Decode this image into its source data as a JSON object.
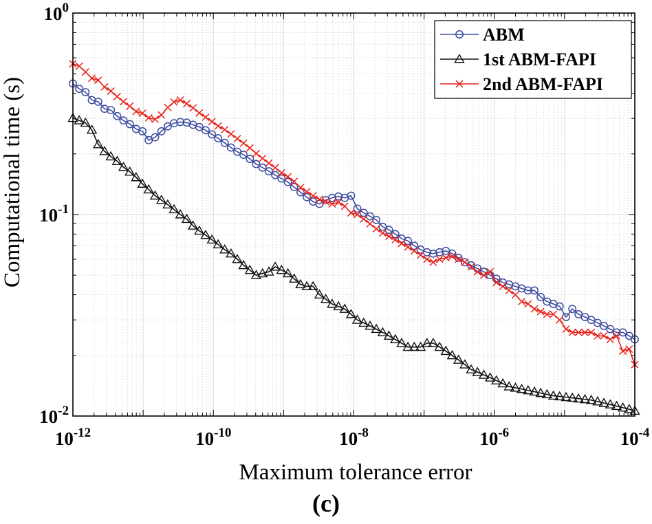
{
  "chart_data": {
    "type": "line",
    "scale": "log-log",
    "title": "",
    "caption": "(c)",
    "xlabel": "Maximum tolerance error",
    "ylabel": "Computational time (s)",
    "xlim": [
      1e-12,
      0.0001
    ],
    "ylim": [
      0.01,
      1
    ],
    "grid": true,
    "legend_position": "top-right",
    "x_ticks": [
      {
        "value": 1e-12,
        "base": "10",
        "exp": "-12"
      },
      {
        "value": 1e-10,
        "base": "10",
        "exp": "-10"
      },
      {
        "value": 1e-08,
        "base": "10",
        "exp": "-8"
      },
      {
        "value": 1e-06,
        "base": "10",
        "exp": "-6"
      },
      {
        "value": 0.0001,
        "base": "10",
        "exp": "-4"
      }
    ],
    "y_ticks": [
      {
        "value": 0.01,
        "base": "10",
        "exp": "-2"
      },
      {
        "value": 0.1,
        "base": "10",
        "exp": "-1"
      },
      {
        "value": 1,
        "base": "10",
        "exp": "0"
      }
    ],
    "series": [
      {
        "name": "ABM",
        "color": "#3b4ba0",
        "marker": "circle",
        "x": [
          1e-12,
          1.23e-12,
          1.51e-12,
          1.86e-12,
          2.29e-12,
          2.82e-12,
          3.47e-12,
          4.27e-12,
          5.25e-12,
          6.46e-12,
          7.94e-12,
          9.77e-12,
          1.2e-11,
          1.48e-11,
          1.82e-11,
          2.24e-11,
          2.75e-11,
          3.39e-11,
          4.17e-11,
          5.13e-11,
          6.31e-11,
          7.76e-11,
          9.55e-11,
          1.17e-10,
          1.45e-10,
          1.78e-10,
          2.19e-10,
          2.69e-10,
          3.31e-10,
          4.07e-10,
          5.01e-10,
          6.17e-10,
          7.59e-10,
          9.33e-10,
          1.15e-09,
          1.41e-09,
          1.74e-09,
          2.14e-09,
          2.63e-09,
          3.24e-09,
          3.98e-09,
          4.9e-09,
          6.03e-09,
          7.41e-09,
          9.12e-09,
          1.12e-08,
          1.38e-08,
          1.7e-08,
          2.09e-08,
          2.57e-08,
          3.16e-08,
          3.89e-08,
          4.79e-08,
          5.89e-08,
          7.24e-08,
          8.91e-08,
          1.1e-07,
          1.35e-07,
          1.66e-07,
          2.04e-07,
          2.51e-07,
          3.09e-07,
          3.8e-07,
          4.68e-07,
          5.75e-07,
          7.08e-07,
          8.71e-07,
          1.07e-06,
          1.32e-06,
          1.62e-06,
          2e-06,
          2.45e-06,
          3.02e-06,
          3.72e-06,
          4.57e-06,
          5.62e-06,
          6.92e-06,
          8.51e-06,
          1.05e-05,
          1.29e-05,
          1.58e-05,
          1.95e-05,
          2.4e-05,
          2.95e-05,
          3.63e-05,
          4.47e-05,
          5.5e-05,
          6.76e-05,
          8.32e-05,
          0.0001
        ],
        "y": [
          0.447,
          0.421,
          0.405,
          0.37,
          0.363,
          0.335,
          0.33,
          0.308,
          0.293,
          0.281,
          0.266,
          0.259,
          0.234,
          0.242,
          0.259,
          0.274,
          0.284,
          0.288,
          0.286,
          0.279,
          0.272,
          0.262,
          0.25,
          0.239,
          0.227,
          0.215,
          0.205,
          0.198,
          0.189,
          0.178,
          0.171,
          0.164,
          0.157,
          0.151,
          0.145,
          0.137,
          0.129,
          0.122,
          0.116,
          0.113,
          0.118,
          0.121,
          0.123,
          0.121,
          0.124,
          0.107,
          0.102,
          0.098,
          0.094,
          0.087,
          0.084,
          0.08,
          0.076,
          0.074,
          0.07,
          0.067,
          0.065,
          0.064,
          0.065,
          0.066,
          0.064,
          0.061,
          0.058,
          0.056,
          0.054,
          0.052,
          0.05,
          0.048,
          0.046,
          0.045,
          0.044,
          0.043,
          0.042,
          0.042,
          0.039,
          0.037,
          0.036,
          0.035,
          0.031,
          0.034,
          0.032,
          0.031,
          0.03,
          0.029,
          0.028,
          0.027,
          0.026,
          0.026,
          0.025,
          0.024
        ]
      },
      {
        "name": "1st ABM-FAPI",
        "color": "#111111",
        "marker": "triangle",
        "x": [
          1e-12,
          1.23e-12,
          1.51e-12,
          1.86e-12,
          2.29e-12,
          2.82e-12,
          3.47e-12,
          4.27e-12,
          5.25e-12,
          6.46e-12,
          7.94e-12,
          9.77e-12,
          1.2e-11,
          1.48e-11,
          1.82e-11,
          2.24e-11,
          2.75e-11,
          3.39e-11,
          4.17e-11,
          5.13e-11,
          6.31e-11,
          7.76e-11,
          9.55e-11,
          1.17e-10,
          1.45e-10,
          1.78e-10,
          2.19e-10,
          2.69e-10,
          3.31e-10,
          4.07e-10,
          5.01e-10,
          6.17e-10,
          7.59e-10,
          9.33e-10,
          1.15e-09,
          1.41e-09,
          1.74e-09,
          2.14e-09,
          2.63e-09,
          3.24e-09,
          3.98e-09,
          4.9e-09,
          6.03e-09,
          7.41e-09,
          9.12e-09,
          1.12e-08,
          1.38e-08,
          1.7e-08,
          2.09e-08,
          2.57e-08,
          3.16e-08,
          3.89e-08,
          4.79e-08,
          5.89e-08,
          7.24e-08,
          8.91e-08,
          1.1e-07,
          1.35e-07,
          1.66e-07,
          2.04e-07,
          2.51e-07,
          3.09e-07,
          3.8e-07,
          4.68e-07,
          5.75e-07,
          7.08e-07,
          8.71e-07,
          1.07e-06,
          1.32e-06,
          1.62e-06,
          2e-06,
          2.45e-06,
          3.02e-06,
          3.72e-06,
          4.57e-06,
          5.62e-06,
          6.92e-06,
          8.51e-06,
          1.05e-05,
          1.29e-05,
          1.58e-05,
          1.95e-05,
          2.4e-05,
          2.95e-05,
          3.63e-05,
          4.47e-05,
          5.5e-05,
          6.76e-05,
          8.32e-05,
          0.0001
        ],
        "y": [
          0.301,
          0.293,
          0.285,
          0.263,
          0.223,
          0.206,
          0.194,
          0.184,
          0.172,
          0.163,
          0.153,
          0.142,
          0.133,
          0.124,
          0.118,
          0.112,
          0.106,
          0.1,
          0.095,
          0.088,
          0.083,
          0.079,
          0.075,
          0.071,
          0.067,
          0.064,
          0.06,
          0.056,
          0.053,
          0.05,
          0.051,
          0.052,
          0.055,
          0.053,
          0.051,
          0.048,
          0.045,
          0.044,
          0.044,
          0.04,
          0.038,
          0.036,
          0.035,
          0.034,
          0.032,
          0.03,
          0.029,
          0.028,
          0.027,
          0.026,
          0.025,
          0.024,
          0.023,
          0.022,
          0.022,
          0.022,
          0.023,
          0.023,
          0.022,
          0.021,
          0.02,
          0.019,
          0.018,
          0.017,
          0.0165,
          0.016,
          0.0155,
          0.015,
          0.0145,
          0.014,
          0.0138,
          0.0136,
          0.0134,
          0.0132,
          0.013,
          0.0128,
          0.0126,
          0.0125,
          0.0124,
          0.0123,
          0.0122,
          0.0121,
          0.012,
          0.0118,
          0.0116,
          0.0114,
          0.0112,
          0.011,
          0.0108,
          0.0106
        ]
      },
      {
        "name": "2nd ABM-FAPI",
        "color": "#e8231b",
        "marker": "cross",
        "x": [
          1e-12,
          1.23e-12,
          1.51e-12,
          1.86e-12,
          2.29e-12,
          2.82e-12,
          3.47e-12,
          4.27e-12,
          5.25e-12,
          6.46e-12,
          7.94e-12,
          9.77e-12,
          1.2e-11,
          1.48e-11,
          1.82e-11,
          2.24e-11,
          2.75e-11,
          3.39e-11,
          4.17e-11,
          5.13e-11,
          6.31e-11,
          7.76e-11,
          9.55e-11,
          1.17e-10,
          1.45e-10,
          1.78e-10,
          2.19e-10,
          2.69e-10,
          3.31e-10,
          4.07e-10,
          5.01e-10,
          6.17e-10,
          7.59e-10,
          9.33e-10,
          1.15e-09,
          1.41e-09,
          1.74e-09,
          2.14e-09,
          2.63e-09,
          3.24e-09,
          3.98e-09,
          4.9e-09,
          6.03e-09,
          7.41e-09,
          9.12e-09,
          1.12e-08,
          1.38e-08,
          1.7e-08,
          2.09e-08,
          2.57e-08,
          3.16e-08,
          3.89e-08,
          4.79e-08,
          5.89e-08,
          7.24e-08,
          8.91e-08,
          1.1e-07,
          1.35e-07,
          1.66e-07,
          2.04e-07,
          2.51e-07,
          3.09e-07,
          3.8e-07,
          4.68e-07,
          5.75e-07,
          7.08e-07,
          8.71e-07,
          1.07e-06,
          1.32e-06,
          1.62e-06,
          2e-06,
          2.45e-06,
          3.02e-06,
          3.72e-06,
          4.57e-06,
          5.62e-06,
          6.92e-06,
          8.51e-06,
          1.05e-05,
          1.29e-05,
          1.58e-05,
          1.95e-05,
          2.4e-05,
          2.95e-05,
          3.63e-05,
          4.47e-05,
          5.5e-05,
          6.76e-05,
          8.32e-05,
          0.0001
        ],
        "y": [
          0.56,
          0.545,
          0.51,
          0.475,
          0.464,
          0.43,
          0.41,
          0.385,
          0.363,
          0.345,
          0.325,
          0.318,
          0.302,
          0.297,
          0.312,
          0.34,
          0.362,
          0.37,
          0.355,
          0.338,
          0.319,
          0.304,
          0.289,
          0.275,
          0.264,
          0.251,
          0.238,
          0.226,
          0.214,
          0.201,
          0.19,
          0.18,
          0.171,
          0.161,
          0.154,
          0.146,
          0.136,
          0.13,
          0.124,
          0.119,
          0.116,
          0.113,
          0.115,
          0.11,
          0.102,
          0.1,
          0.095,
          0.09,
          0.085,
          0.081,
          0.078,
          0.075,
          0.072,
          0.069,
          0.066,
          0.063,
          0.06,
          0.058,
          0.06,
          0.061,
          0.062,
          0.06,
          0.058,
          0.055,
          0.052,
          0.05,
          0.052,
          0.046,
          0.044,
          0.042,
          0.04,
          0.037,
          0.036,
          0.034,
          0.033,
          0.032,
          0.032,
          0.03,
          0.027,
          0.026,
          0.026,
          0.026,
          0.026,
          0.025,
          0.025,
          0.024,
          0.025,
          0.021,
          0.0215,
          0.018
        ]
      }
    ]
  }
}
